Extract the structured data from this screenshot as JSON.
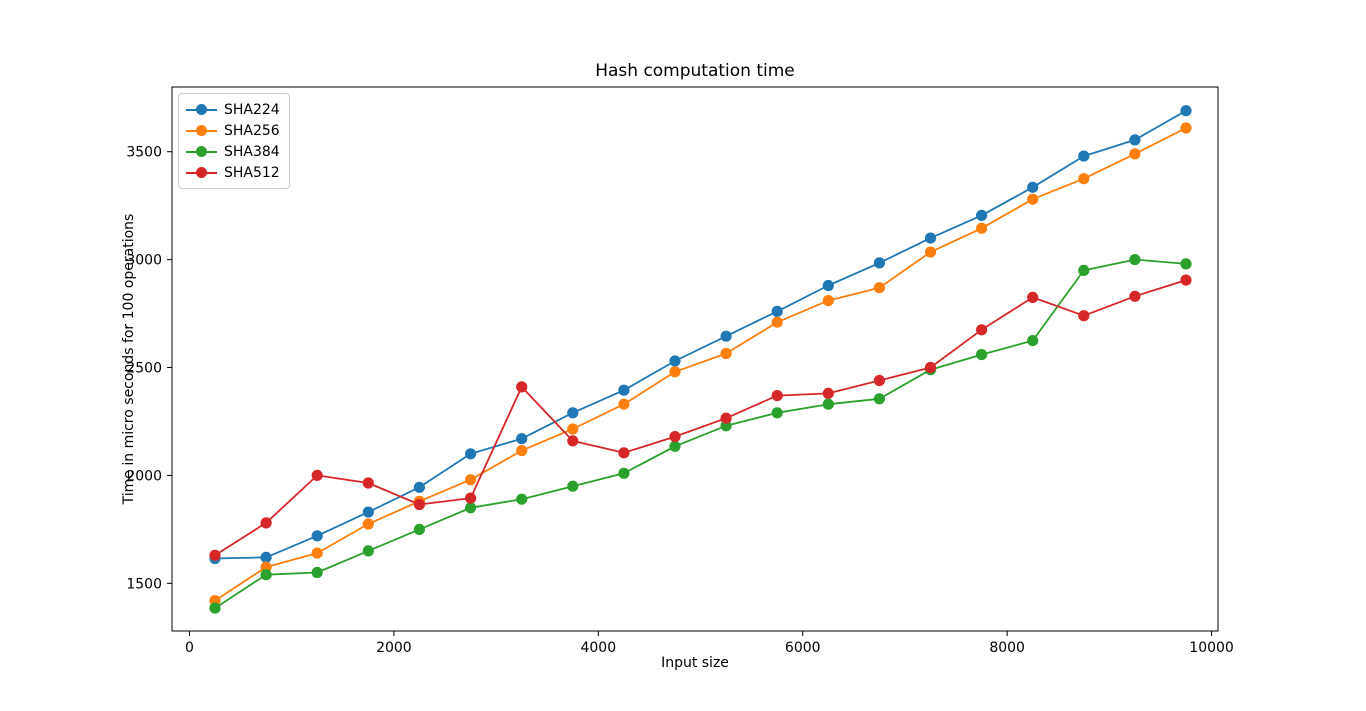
{
  "chart_data": {
    "type": "line",
    "title": "Hash computation time",
    "xlabel": "Input size",
    "ylabel": "Time in micro seconds for 100 operations",
    "grid": false,
    "legend_position": "upper left",
    "xlim": [
      -171,
      10063
    ],
    "ylim": [
      1279,
      3800
    ],
    "xticks": [
      0,
      2000,
      4000,
      6000,
      8000,
      10000
    ],
    "yticks": [
      1500,
      2000,
      2500,
      3000,
      3500
    ],
    "x": [
      250,
      750,
      1250,
      1750,
      2250,
      2750,
      3250,
      3750,
      4250,
      4750,
      5250,
      5750,
      6250,
      6750,
      7250,
      7750,
      8250,
      8750,
      9250,
      9750
    ],
    "series": [
      {
        "name": "SHA224",
        "color": "#1f77b4",
        "values": [
          1615,
          1620,
          1720,
          1830,
          1945,
          2100,
          2170,
          2290,
          2395,
          2530,
          2645,
          2760,
          2880,
          2985,
          3100,
          3205,
          3335,
          3480,
          3555,
          3690
        ]
      },
      {
        "name": "SHA256",
        "color": "#ff7f0e",
        "values": [
          1420,
          1575,
          1640,
          1775,
          1880,
          1980,
          2115,
          2215,
          2330,
          2480,
          2565,
          2710,
          2810,
          2870,
          3035,
          3145,
          3280,
          3375,
          3490,
          3610
        ]
      },
      {
        "name": "SHA384",
        "color": "#2ca02c",
        "values": [
          1385,
          1540,
          1550,
          1650,
          1750,
          1850,
          1890,
          1950,
          2010,
          2135,
          2230,
          2290,
          2330,
          2355,
          2490,
          2560,
          2625,
          2950,
          3000,
          2980
        ]
      },
      {
        "name": "SHA512",
        "color": "#d62728",
        "values": [
          1630,
          1780,
          2000,
          1965,
          1865,
          1895,
          2410,
          2160,
          2105,
          2180,
          2265,
          2370,
          2380,
          2440,
          2500,
          2675,
          2825,
          2740,
          2830,
          2905
        ]
      }
    ]
  }
}
